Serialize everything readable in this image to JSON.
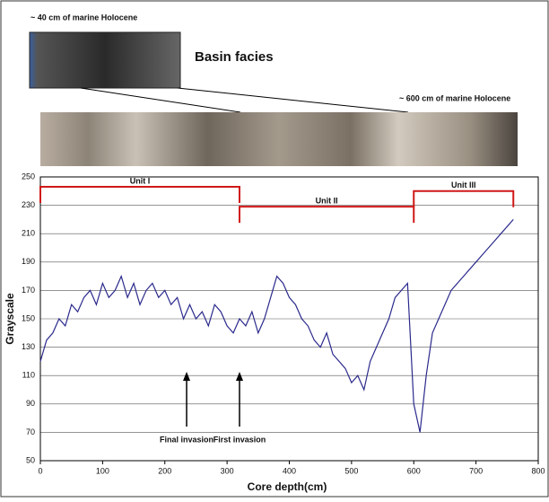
{
  "chart_data": {
    "type": "line",
    "top_label": "~ 40 cm of marine Holocene",
    "facies_label": "Basin facies",
    "core_label": "~ 600 cm of marine Holocene",
    "xlabel": "Core depth(cm)",
    "ylabel": "Grayscale",
    "xlim": [
      0,
      800
    ],
    "xticks": [
      0,
      100,
      200,
      300,
      400,
      500,
      600,
      700,
      800
    ],
    "ylim": [
      50,
      250
    ],
    "yticks": [
      50,
      70,
      90,
      110,
      130,
      150,
      170,
      190,
      210,
      230,
      250
    ],
    "grid": true,
    "x": [
      0,
      10,
      20,
      30,
      40,
      50,
      60,
      70,
      80,
      90,
      100,
      110,
      120,
      130,
      140,
      150,
      160,
      170,
      180,
      190,
      200,
      210,
      220,
      230,
      240,
      250,
      260,
      270,
      280,
      290,
      300,
      310,
      320,
      330,
      340,
      350,
      360,
      370,
      380,
      390,
      400,
      410,
      420,
      430,
      440,
      450,
      460,
      470,
      480,
      490,
      500,
      510,
      520,
      530,
      540,
      550,
      560,
      570,
      580,
      590,
      600,
      610,
      620,
      630,
      640,
      650,
      660,
      670,
      680,
      690,
      700,
      710,
      720,
      730,
      740,
      750,
      760
    ],
    "series": [
      {
        "color": "#2b2a8c",
        "values": [
          120,
          135,
          140,
          150,
          145,
          160,
          155,
          165,
          170,
          160,
          175,
          165,
          170,
          180,
          165,
          175,
          160,
          170,
          175,
          165,
          170,
          160,
          165,
          150,
          160,
          150,
          155,
          145,
          160,
          155,
          145,
          140,
          150,
          145,
          155,
          140,
          150,
          165,
          180,
          175,
          165,
          160,
          150,
          145,
          135,
          130,
          140,
          125,
          120,
          115,
          105,
          110,
          100,
          120,
          130,
          140,
          150,
          165,
          170,
          175,
          90,
          70,
          110,
          140,
          150,
          160,
          170,
          175,
          180,
          185,
          190,
          195,
          200,
          205,
          210,
          215,
          220
        ]
      }
    ],
    "units": [
      {
        "label": "Unit I",
        "x": [
          0,
          320
        ],
        "y": 243
      },
      {
        "label": "Unit II",
        "x": [
          320,
          600
        ],
        "y": 229
      },
      {
        "label": "Unit III",
        "x": [
          600,
          760
        ],
        "y": 240
      }
    ],
    "arrows": [
      {
        "label": "Final invasion",
        "x": 235
      },
      {
        "label": "First invasion",
        "x": 320
      }
    ]
  }
}
